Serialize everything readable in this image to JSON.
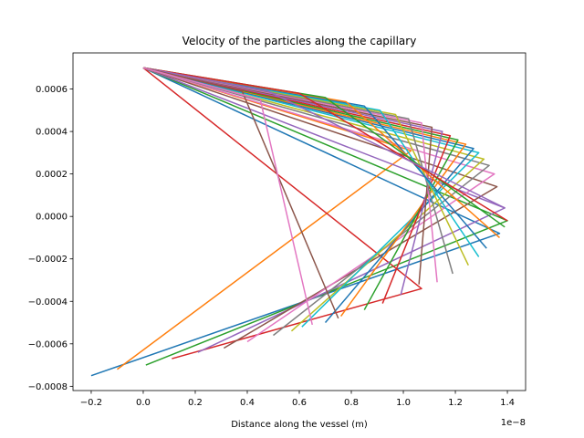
{
  "chart_data": {
    "type": "line",
    "title": "Velocity of the particles along the capillary",
    "xlabel": "Distance along the vessel (m)",
    "ylabel": "",
    "x_offset_text": "1e−8",
    "xlim": [
      -0.27,
      1.47
    ],
    "ylim": [
      -0.00082,
      0.00077
    ],
    "xticks": [
      -0.2,
      0.0,
      0.2,
      0.4,
      0.6,
      0.8,
      1.0,
      1.2,
      1.4
    ],
    "xtick_labels": [
      "−0.2",
      "0.0",
      "0.2",
      "0.4",
      "0.6",
      "0.8",
      "1.0",
      "1.2",
      "1.4"
    ],
    "yticks": [
      -0.0008,
      -0.0006,
      -0.0004,
      -0.0002,
      0.0,
      0.0002,
      0.0004,
      0.0006
    ],
    "ytick_labels": [
      "−0.0008",
      "−0.0006",
      "−0.0004",
      "−0.0002",
      "0.0000",
      "0.0002",
      "0.0004",
      "0.0006"
    ],
    "grid": false,
    "colors": [
      "#1f77b4",
      "#ff7f0e",
      "#2ca02c",
      "#d62728",
      "#9467bd",
      "#8c564b",
      "#e377c2",
      "#7f7f7f",
      "#bcbd22",
      "#17becf"
    ],
    "series": [
      {
        "x": [
          -0.2,
          1.37,
          0.0
        ],
        "y": [
          -0.00075,
          -8e-05,
          0.0007
        ]
      },
      {
        "x": [
          -0.1,
          1.03,
          0.0
        ],
        "y": [
          -0.00072,
          0.00031,
          0.0007
        ]
      },
      {
        "x": [
          0.01,
          1.4,
          0.0
        ],
        "y": [
          -0.0007,
          -2e-05,
          0.0007
        ]
      },
      {
        "x": [
          0.11,
          1.07,
          0.0
        ],
        "y": [
          -0.00067,
          -0.00034,
          0.0007
        ]
      },
      {
        "x": [
          0.21,
          1.39,
          0.0
        ],
        "y": [
          -0.00064,
          4e-05,
          0.0007
        ]
      },
      {
        "x": [
          0.31,
          1.36,
          0.0
        ],
        "y": [
          -0.00062,
          0.00014,
          0.0007
        ]
      },
      {
        "x": [
          0.4,
          1.35,
          0.0
        ],
        "y": [
          -0.00059,
          0.0002,
          0.0007
        ]
      },
      {
        "x": [
          0.5,
          1.33,
          0.0
        ],
        "y": [
          -0.00056,
          0.00024,
          0.0007
        ]
      },
      {
        "x": [
          0.57,
          1.31,
          0.0
        ],
        "y": [
          -0.00054,
          0.00027,
          0.0007
        ]
      },
      {
        "x": [
          0.61,
          1.29,
          0.0
        ],
        "y": [
          -0.00052,
          0.0003,
          0.0007
        ]
      },
      {
        "x": [
          0.7,
          1.27,
          0.0
        ],
        "y": [
          -0.0005,
          0.00032,
          0.0007
        ]
      },
      {
        "x": [
          0.76,
          1.24,
          0.0
        ],
        "y": [
          -0.00047,
          0.00034,
          0.0007
        ]
      },
      {
        "x": [
          0.85,
          1.21,
          0.0
        ],
        "y": [
          -0.00044,
          0.00036,
          0.0007
        ]
      },
      {
        "x": [
          0.92,
          1.18,
          0.0
        ],
        "y": [
          -0.00041,
          0.00038,
          0.0007
        ]
      },
      {
        "x": [
          0.99,
          1.15,
          0.0
        ],
        "y": [
          -0.00037,
          0.0004,
          0.0007
        ]
      },
      {
        "x": [
          1.06,
          1.11,
          0.0
        ],
        "y": [
          -0.00032,
          0.00042,
          0.0007
        ]
      },
      {
        "x": [
          1.13,
          1.07,
          0.0
        ],
        "y": [
          -0.00031,
          0.00044,
          0.0007
        ]
      },
      {
        "x": [
          1.19,
          1.02,
          0.0
        ],
        "y": [
          -0.00027,
          0.00046,
          0.0007
        ]
      },
      {
        "x": [
          1.25,
          0.97,
          0.0
        ],
        "y": [
          -0.00023,
          0.00048,
          0.0007
        ]
      },
      {
        "x": [
          1.29,
          0.91,
          0.0
        ],
        "y": [
          -0.00019,
          0.0005,
          0.0007
        ]
      },
      {
        "x": [
          1.32,
          0.85,
          0.0
        ],
        "y": [
          -0.00015,
          0.00052,
          0.0007
        ]
      },
      {
        "x": [
          1.37,
          0.78,
          0.0
        ],
        "y": [
          -0.0001,
          0.00054,
          0.0007
        ]
      },
      {
        "x": [
          1.39,
          0.7,
          0.0
        ],
        "y": [
          -5e-05,
          0.00056,
          0.0007
        ]
      },
      {
        "x": [
          1.4,
          0.6,
          0.0
        ],
        "y": [
          -2e-05,
          0.00058,
          0.0007
        ]
      },
      {
        "x": [
          1.39,
          0.48,
          0.0
        ],
        "y": [
          4e-05,
          0.00059,
          0.0007
        ]
      },
      {
        "x": [
          0.75,
          0.38,
          0.0
        ],
        "y": [
          -0.00048,
          0.00059,
          0.0007
        ]
      },
      {
        "x": [
          0.65,
          0.45,
          0.0
        ],
        "y": [
          -0.00051,
          0.00055,
          0.0007
        ]
      }
    ]
  }
}
